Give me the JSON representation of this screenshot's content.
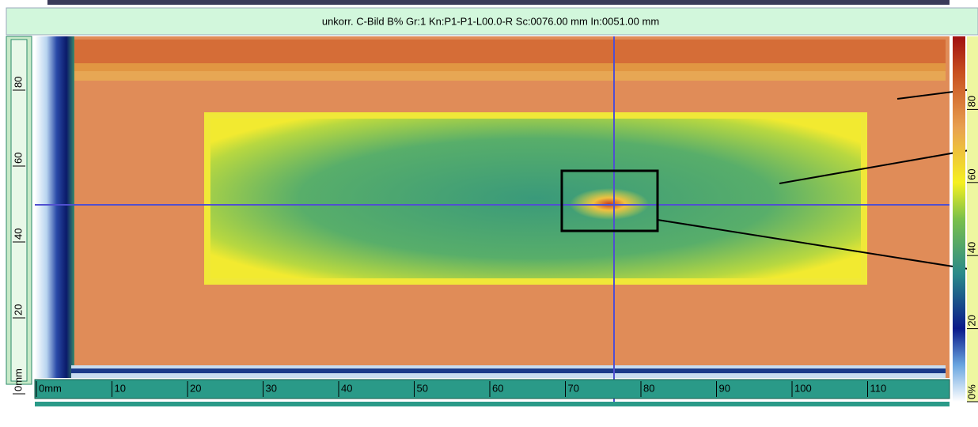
{
  "chart_data": {
    "type": "heatmap",
    "title": "unkorr. C-Bild B% Gr:1 Kn:P1-P1-L00.0-R Sc:0076.00 mm In:0051.00 mm",
    "xlim": [
      0,
      120
    ],
    "xticks": [
      {
        "value": 0,
        "label": "0mm"
      },
      10,
      20,
      30,
      40,
      50,
      60,
      70,
      80,
      90,
      100,
      110
    ],
    "ylim": [
      0,
      90
    ],
    "yticks": [
      {
        "value": 0,
        "label": "0mm"
      },
      20,
      40,
      60,
      80
    ],
    "colorbar_lim": [
      0,
      100
    ],
    "colorbar_ticks": [
      {
        "value": 0,
        "label": "0%"
      },
      20,
      40,
      60,
      80
    ]
  }
}
